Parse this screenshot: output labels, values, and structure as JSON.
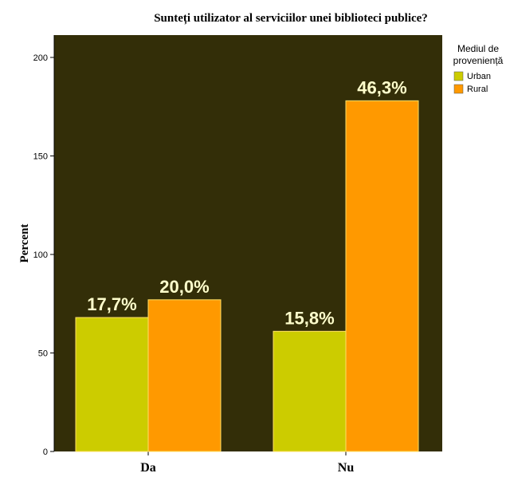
{
  "chart_data": {
    "type": "bar",
    "title": "Sunteți utilizator al serviciilor unei biblioteci publice?",
    "xlabel": "",
    "ylabel": "Percent",
    "categories": [
      "Da",
      "Nu"
    ],
    "ylim": [
      0,
      200
    ],
    "yticks": [
      0,
      50,
      100,
      150,
      200
    ],
    "grid": false,
    "legend": {
      "title_lines": [
        "Mediul de",
        "proveniență"
      ],
      "placement": "right"
    },
    "series": [
      {
        "name": "Urban",
        "color": "#cccc00",
        "values": [
          68,
          61
        ],
        "labels": [
          "17,7%",
          "15,8%"
        ]
      },
      {
        "name": "Rural",
        "color": "#ff9900",
        "values": [
          77,
          178
        ],
        "labels": [
          "20,0%",
          "46,3%"
        ]
      }
    ],
    "colors": {
      "plot_background": "#332e08",
      "data_label": "#ffffcc",
      "bar_outline": "#ffe066"
    }
  }
}
